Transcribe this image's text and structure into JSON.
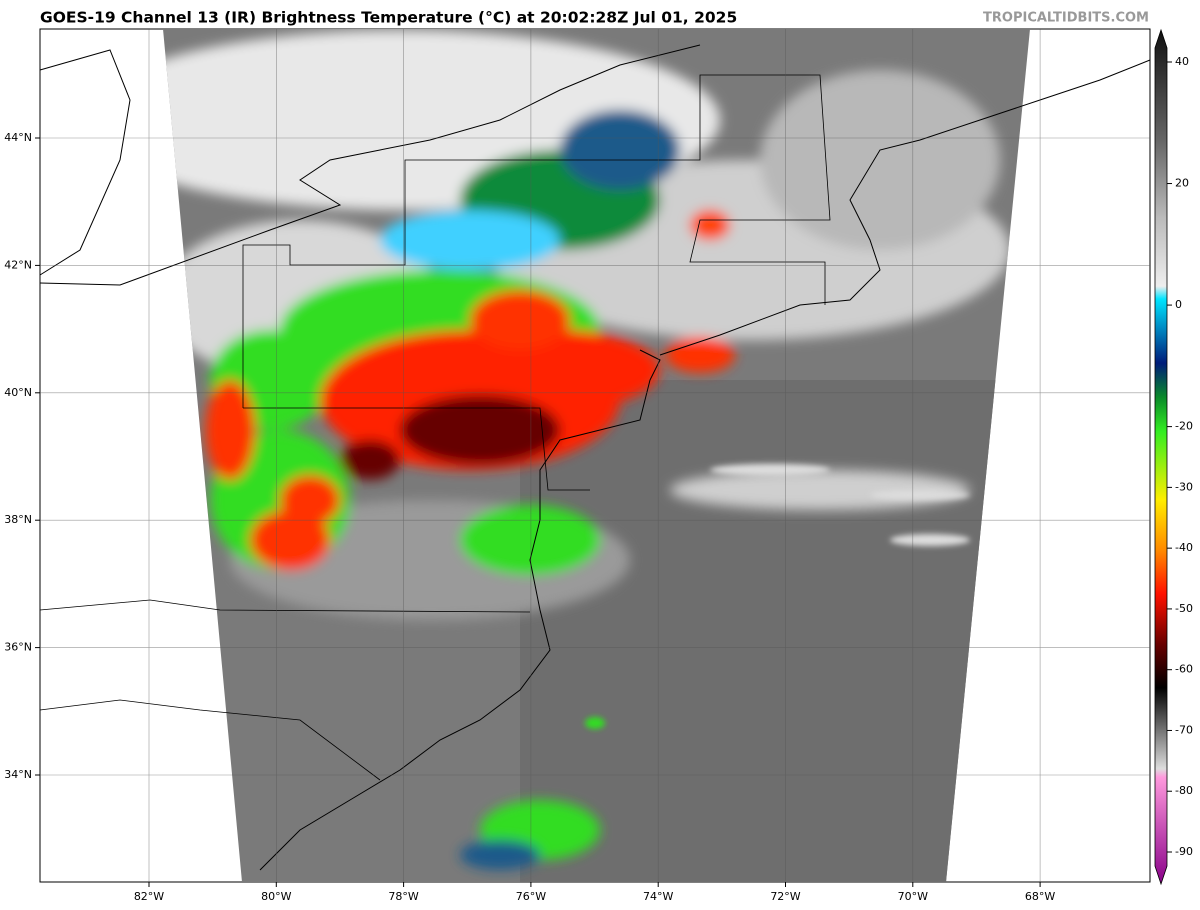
{
  "header": {
    "title": "GOES-19 Channel 13 (IR) Brightness Temperature (°C) at 20:02:28Z Jul 01, 2025",
    "credit": "TROPICALTIDBITS.COM"
  },
  "map": {
    "lon_labels": [
      "82°W",
      "80°W",
      "78°W",
      "76°W",
      "74°W",
      "72°W",
      "70°W",
      "68°W"
    ],
    "lat_labels": [
      "44°N",
      "42°N",
      "40°N",
      "38°N",
      "36°N",
      "34°N"
    ]
  },
  "colorbar": {
    "ticks": [
      40,
      20,
      0,
      -20,
      -30,
      -40,
      -50,
      -60,
      -70,
      -80,
      -90
    ]
  }
}
